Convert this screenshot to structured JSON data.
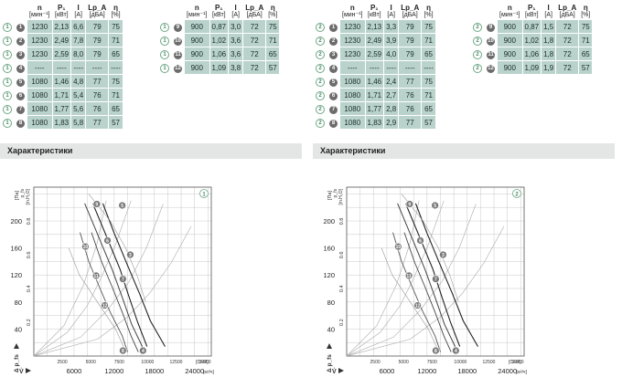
{
  "headers": {
    "n": "n",
    "n_unit": "[мин⁻¹]",
    "p": "P₁",
    "p_unit": "[кВт]",
    "i": "I",
    "i_unit": "[A]",
    "lpa": "Lp_A",
    "lpa_unit": "[дБА]",
    "eta": "η",
    "eta_unit": "[%]"
  },
  "section_title": "Характеристики",
  "panels": [
    {
      "id": "1",
      "left_rows": [
        {
          "o": "1",
          "f": "1",
          "n": "1230",
          "p": "2,13",
          "i": "6,6",
          "lpa": "79",
          "eta": "75"
        },
        {
          "o": "1",
          "f": "2",
          "n": "1230",
          "p": "2,49",
          "i": "7,8",
          "lpa": "79",
          "eta": "71"
        },
        {
          "o": "1",
          "f": "3",
          "n": "1230",
          "p": "2,59",
          "i": "8,0",
          "lpa": "79",
          "eta": "65"
        },
        {
          "o": "1",
          "f": "4",
          "n": "----",
          "p": "----",
          "i": "----",
          "lpa": "----",
          "eta": "----"
        },
        {
          "o": "1",
          "f": "5",
          "n": "1080",
          "p": "1,46",
          "i": "4,8",
          "lpa": "77",
          "eta": "75"
        },
        {
          "o": "1",
          "f": "6",
          "n": "1080",
          "p": "1,71",
          "i": "5,4",
          "lpa": "76",
          "eta": "71"
        },
        {
          "o": "1",
          "f": "7",
          "n": "1080",
          "p": "1,77",
          "i": "5,6",
          "lpa": "76",
          "eta": "65"
        },
        {
          "o": "1",
          "f": "8",
          "n": "1080",
          "p": "1,83",
          "i": "5,8",
          "lpa": "77",
          "eta": "57"
        }
      ],
      "right_rows": [
        {
          "o": "1",
          "f": "9",
          "n": "900",
          "p": "0,87",
          "i": "3,0",
          "lpa": "72",
          "eta": "75"
        },
        {
          "o": "1",
          "f": "10",
          "n": "900",
          "p": "1,02",
          "i": "3,6",
          "lpa": "72",
          "eta": "71"
        },
        {
          "o": "1",
          "f": "11",
          "n": "900",
          "p": "1,06",
          "i": "3,6",
          "lpa": "72",
          "eta": "65"
        },
        {
          "o": "1",
          "f": "12",
          "n": "900",
          "p": "1,09",
          "i": "3,8",
          "lpa": "72",
          "eta": "57"
        }
      ]
    },
    {
      "id": "2",
      "left_rows": [
        {
          "o": "2",
          "f": "1",
          "n": "1230",
          "p": "2,13",
          "i": "3,3",
          "lpa": "79",
          "eta": "75"
        },
        {
          "o": "2",
          "f": "2",
          "n": "1230",
          "p": "2,49",
          "i": "3,9",
          "lpa": "79",
          "eta": "71"
        },
        {
          "o": "2",
          "f": "3",
          "n": "1230",
          "p": "2,59",
          "i": "4,0",
          "lpa": "79",
          "eta": "65"
        },
        {
          "o": "2",
          "f": "4",
          "n": "----",
          "p": "----",
          "i": "----",
          "lpa": "----",
          "eta": "----"
        },
        {
          "o": "2",
          "f": "5",
          "n": "1080",
          "p": "1,46",
          "i": "2,4",
          "lpa": "77",
          "eta": "75"
        },
        {
          "o": "2",
          "f": "6",
          "n": "1080",
          "p": "1,71",
          "i": "2,7",
          "lpa": "76",
          "eta": "71"
        },
        {
          "o": "2",
          "f": "7",
          "n": "1080",
          "p": "1,77",
          "i": "2,8",
          "lpa": "76",
          "eta": "65"
        },
        {
          "o": "2",
          "f": "8",
          "n": "1080",
          "p": "1,83",
          "i": "2,9",
          "lpa": "77",
          "eta": "57"
        }
      ],
      "right_rows": [
        {
          "o": "2",
          "f": "9",
          "n": "900",
          "p": "0,87",
          "i": "1,5",
          "lpa": "72",
          "eta": "75"
        },
        {
          "o": "2",
          "f": "10",
          "n": "900",
          "p": "1,02",
          "i": "1,8",
          "lpa": "72",
          "eta": "71"
        },
        {
          "o": "2",
          "f": "11",
          "n": "900",
          "p": "1,06",
          "i": "1,8",
          "lpa": "72",
          "eta": "65"
        },
        {
          "o": "2",
          "f": "12",
          "n": "900",
          "p": "1,09",
          "i": "1,9",
          "lpa": "72",
          "eta": "57"
        }
      ]
    }
  ],
  "chart_data": [
    {
      "type": "line",
      "badge": "1",
      "y_unit": "[Па]",
      "y_label": "Δ p_fs",
      "y2_unit": "[in.H₂O]",
      "y2_label": "p_fs",
      "x_unit": "[м³/ч]",
      "x_label": "V̇",
      "x2_unit": "[CFM]",
      "xlim": [
        0,
        26500
      ],
      "ylim": [
        0,
        250
      ],
      "x_ticks": [
        6000,
        12000,
        18000,
        24000
      ],
      "y_ticks": [
        40,
        80,
        120,
        160,
        200
      ],
      "x2_ticks": [
        2500,
        5000,
        7500,
        10000,
        12500,
        15000
      ],
      "y2_ticks": [
        0.2,
        0.4,
        0.6,
        0.8
      ],
      "series": [
        {
          "values": [
            [
              8800,
              226
            ],
            [
              10900,
              176
            ],
            [
              12900,
              128
            ],
            [
              14200,
              88
            ],
            [
              15500,
              50
            ],
            [
              16900,
              14
            ]
          ]
        },
        {
          "values": [
            [
              7600,
              226
            ],
            [
              9700,
              176
            ],
            [
              11700,
              128
            ],
            [
              13300,
              84
            ],
            [
              14600,
              47
            ],
            [
              16200,
              14
            ]
          ]
        },
        {
          "values": [
            [
              10300,
              226
            ],
            [
              12000,
              182
            ],
            [
              14000,
              134
            ],
            [
              15800,
              92
            ],
            [
              17400,
              52
            ],
            [
              19600,
              14
            ]
          ]
        },
        {
          "values": [
            [
              8600,
              183
            ],
            [
              10100,
              140
            ],
            [
              11700,
              102
            ],
            [
              13200,
              65
            ],
            [
              14500,
              30
            ],
            [
              15600,
              6
            ]
          ]
        },
        {
          "values": [
            [
              6900,
              183
            ],
            [
              8200,
              140
            ],
            [
              9800,
              102
            ],
            [
              11400,
              65
            ],
            [
              13200,
              30
            ],
            [
              14000,
              6
            ]
          ]
        },
        {
          "values": [
            [
              8200,
              240
            ],
            [
              11400,
              200
            ],
            [
              13700,
              160
            ],
            [
              15400,
              120
            ],
            [
              16700,
              80
            ]
          ]
        },
        {
          "values": [
            [
              5200,
              160
            ],
            [
              6800,
              120
            ],
            [
              9500,
              80
            ],
            [
              12200,
              40
            ],
            [
              13400,
              14
            ]
          ]
        }
      ],
      "curves": [
        {
          "values": [
            [
              0,
              0
            ],
            [
              5000,
              35
            ],
            [
              8000,
              75
            ],
            [
              10000,
              115
            ],
            [
              12200,
              165
            ],
            [
              14500,
              230
            ]
          ]
        },
        {
          "values": [
            [
              0,
              0
            ],
            [
              7000,
              28
            ],
            [
              11000,
              68
            ],
            [
              14200,
              110
            ],
            [
              16800,
              160
            ],
            [
              19300,
              225
            ]
          ]
        },
        {
          "values": [
            [
              0,
              0
            ],
            [
              9500,
              25
            ],
            [
              14000,
              58
            ],
            [
              17300,
              93
            ],
            [
              20500,
              138
            ],
            [
              23500,
              192
            ]
          ]
        },
        {
          "values": [
            [
              0,
              0
            ],
            [
              4500,
              45
            ],
            [
              7400,
              105
            ],
            [
              9400,
              165
            ],
            [
              10800,
              230
            ]
          ]
        }
      ],
      "points": [
        {
          "x": 9400,
          "y": 225,
          "label": "9"
        },
        {
          "x": 13200,
          "y": 223,
          "label": "5"
        },
        {
          "x": 7700,
          "y": 162,
          "label": "10"
        },
        {
          "x": 11000,
          "y": 171,
          "label": "6"
        },
        {
          "x": 9300,
          "y": 119,
          "label": "11"
        },
        {
          "x": 13300,
          "y": 114,
          "label": "7"
        },
        {
          "x": 14400,
          "y": 150,
          "label": "3"
        },
        {
          "x": 10600,
          "y": 75,
          "label": "12"
        },
        {
          "x": 13300,
          "y": 8,
          "label": "8"
        },
        {
          "x": 16300,
          "y": 8,
          "label": "4"
        }
      ]
    },
    {
      "type": "line",
      "badge": "2",
      "y_unit": "[Па]",
      "y_label": "Δ p_fs",
      "y2_unit": "[in.H₂O]",
      "y2_label": "p_fs",
      "x_unit": "[м³/ч]",
      "x_label": "V̇",
      "x2_unit": "[CFM]",
      "xlim": [
        0,
        26500
      ],
      "ylim": [
        0,
        250
      ],
      "x_ticks": [
        6000,
        12000,
        18000,
        24000
      ],
      "y_ticks": [
        40,
        80,
        120,
        160,
        200
      ],
      "x2_ticks": [
        2500,
        5000,
        7500,
        10000,
        12500,
        15000
      ],
      "y2_ticks": [
        0.2,
        0.4,
        0.6,
        0.8
      ],
      "series": [
        {
          "values": [
            [
              8800,
              226
            ],
            [
              10900,
              176
            ],
            [
              12900,
              128
            ],
            [
              14200,
              88
            ],
            [
              15500,
              50
            ],
            [
              16900,
              14
            ]
          ]
        },
        {
          "values": [
            [
              7600,
              226
            ],
            [
              9700,
              176
            ],
            [
              11700,
              128
            ],
            [
              13300,
              84
            ],
            [
              14600,
              47
            ],
            [
              16200,
              14
            ]
          ]
        },
        {
          "values": [
            [
              10300,
              226
            ],
            [
              12000,
              182
            ],
            [
              14000,
              134
            ],
            [
              15800,
              92
            ],
            [
              17400,
              52
            ],
            [
              19600,
              14
            ]
          ]
        },
        {
          "values": [
            [
              8600,
              183
            ],
            [
              10100,
              140
            ],
            [
              11700,
              102
            ],
            [
              13200,
              65
            ],
            [
              14500,
              30
            ],
            [
              15600,
              6
            ]
          ]
        },
        {
          "values": [
            [
              6900,
              183
            ],
            [
              8200,
              140
            ],
            [
              9800,
              102
            ],
            [
              11400,
              65
            ],
            [
              13200,
              30
            ],
            [
              14000,
              6
            ]
          ]
        },
        {
          "values": [
            [
              8200,
              240
            ],
            [
              11400,
              200
            ],
            [
              13700,
              160
            ],
            [
              15400,
              120
            ],
            [
              16700,
              80
            ]
          ]
        },
        {
          "values": [
            [
              5200,
              160
            ],
            [
              6800,
              120
            ],
            [
              9500,
              80
            ],
            [
              12200,
              40
            ],
            [
              13400,
              14
            ]
          ]
        }
      ],
      "curves": [
        {
          "values": [
            [
              0,
              0
            ],
            [
              5000,
              35
            ],
            [
              8000,
              75
            ],
            [
              10000,
              115
            ],
            [
              12200,
              165
            ],
            [
              14500,
              230
            ]
          ]
        },
        {
          "values": [
            [
              0,
              0
            ],
            [
              7000,
              28
            ],
            [
              11000,
              68
            ],
            [
              14200,
              110
            ],
            [
              16800,
              160
            ],
            [
              19300,
              225
            ]
          ]
        },
        {
          "values": [
            [
              0,
              0
            ],
            [
              9500,
              25
            ],
            [
              14000,
              58
            ],
            [
              17300,
              93
            ],
            [
              20500,
              138
            ],
            [
              23500,
              192
            ]
          ]
        },
        {
          "values": [
            [
              0,
              0
            ],
            [
              4500,
              45
            ],
            [
              7400,
              105
            ],
            [
              9400,
              165
            ],
            [
              10800,
              230
            ]
          ]
        }
      ],
      "points": [
        {
          "x": 9400,
          "y": 225,
          "label": "9"
        },
        {
          "x": 13200,
          "y": 223,
          "label": "5"
        },
        {
          "x": 7700,
          "y": 162,
          "label": "10"
        },
        {
          "x": 11000,
          "y": 171,
          "label": "6"
        },
        {
          "x": 9300,
          "y": 119,
          "label": "11"
        },
        {
          "x": 13300,
          "y": 114,
          "label": "7"
        },
        {
          "x": 14400,
          "y": 150,
          "label": "3"
        },
        {
          "x": 10600,
          "y": 75,
          "label": "12"
        },
        {
          "x": 13300,
          "y": 8,
          "label": "8"
        },
        {
          "x": 16300,
          "y": 8,
          "label": "4"
        }
      ]
    }
  ],
  "colors": {
    "cell": "#b9d3cc",
    "header_band": "#e4e6e6",
    "badge_outline": "#6aa883",
    "marker": "#777777",
    "curve_dark": "#222222",
    "curve_mid": "#555555",
    "curve_light": "#999999"
  }
}
